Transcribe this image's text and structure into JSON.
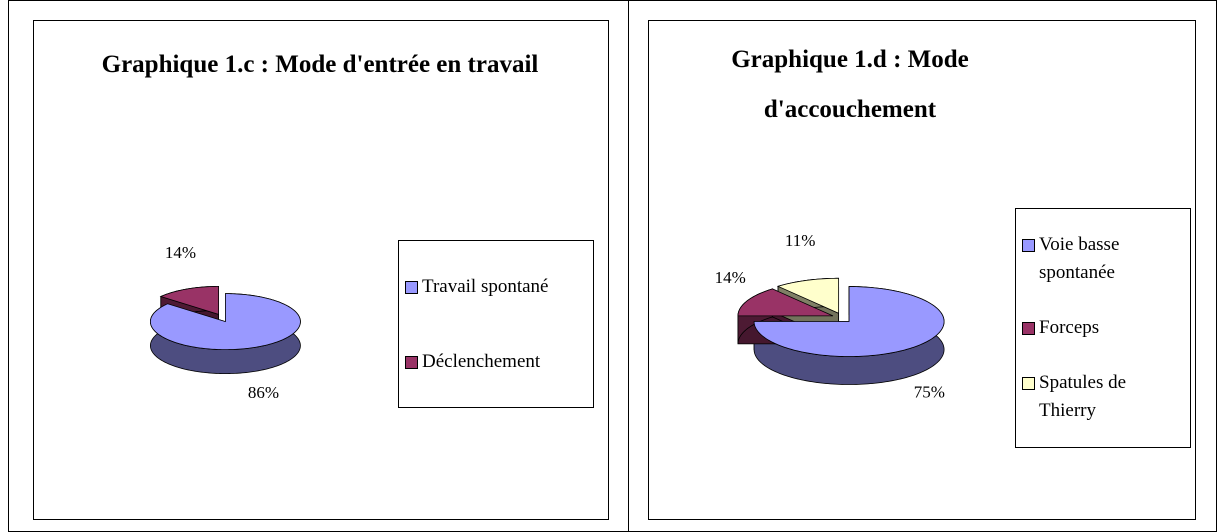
{
  "chart_data": [
    {
      "type": "pie",
      "title": "Graphique 1.c : Mode d'entrée en travail",
      "categories": [
        "Travail spontané",
        "Déclenchement"
      ],
      "values": [
        86,
        14
      ],
      "value_labels": [
        "86%",
        "14%"
      ],
      "colors": [
        "#9999ff",
        "#993366"
      ],
      "legend": "right",
      "three_d": true
    },
    {
      "type": "pie",
      "title": "Graphique 1.d : Mode d'accouchement",
      "categories": [
        "Voie basse spontanée",
        "Forceps",
        "Spatules de Thierry"
      ],
      "values": [
        75,
        14,
        11
      ],
      "value_labels": [
        "75%",
        "14%",
        "11%"
      ],
      "colors": [
        "#9999ff",
        "#993366",
        "#ffffcc"
      ],
      "legend": "right",
      "three_d": true
    }
  ]
}
